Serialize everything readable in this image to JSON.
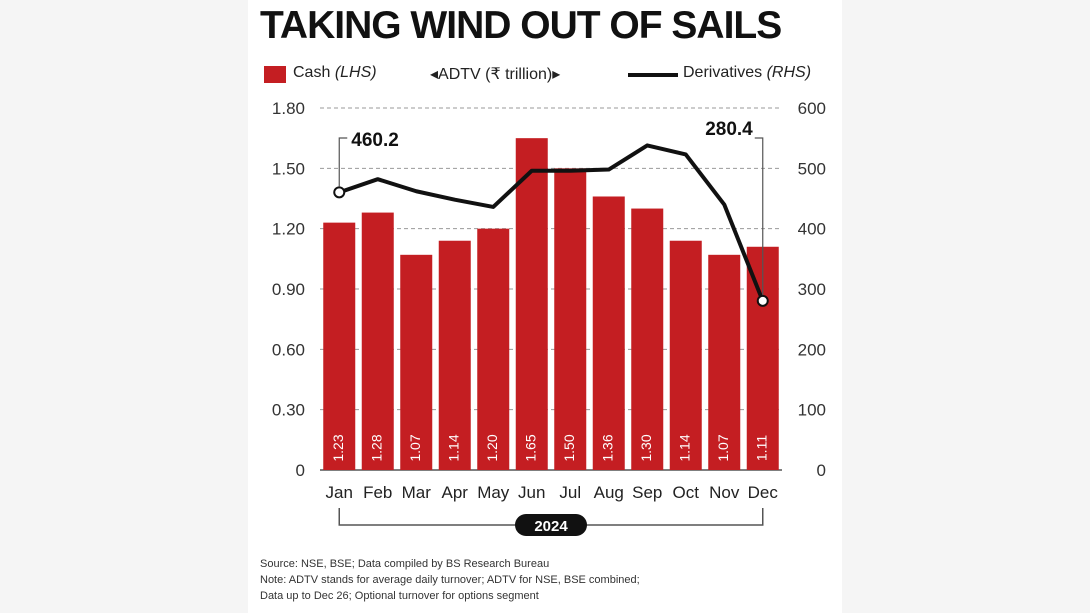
{
  "title": "TAKING WIND OUT OF SAILS",
  "legend": {
    "cash_label": "Cash",
    "cash_side": "(LHS)",
    "adtv_label": "◂ADTV (₹ trillion)▸",
    "derivatives_label": "Derivatives",
    "derivatives_side": "(RHS)"
  },
  "notes": [
    "Source: NSE, BSE; Data compiled by BS Research Bureau",
    "Note: ADTV stands for average daily turnover; ADTV for NSE, BSE combined;",
    "Data up to Dec 26; Optional turnover for options segment"
  ],
  "colors": {
    "bar": "#c41e22",
    "line": "#111111"
  },
  "chart_data": {
    "type": "bar",
    "categories": [
      "Jan",
      "Feb",
      "Mar",
      "Apr",
      "May",
      "Jun",
      "Jul",
      "Aug",
      "Sep",
      "Oct",
      "Nov",
      "Dec"
    ],
    "year_label": "2024",
    "series": [
      {
        "name": "Cash",
        "type": "bar",
        "axis": "left",
        "values": [
          1.23,
          1.28,
          1.07,
          1.14,
          1.2,
          1.65,
          1.5,
          1.36,
          1.3,
          1.14,
          1.07,
          1.11
        ],
        "labels": [
          "1.23",
          "1.28",
          "1.07",
          "1.14",
          "1.20",
          "1.65",
          "1.50",
          "1.36",
          "1.30",
          "1.14",
          "1.07",
          "1.11"
        ]
      },
      {
        "name": "Derivatives",
        "type": "line",
        "axis": "right",
        "values": [
          460.2,
          482,
          462,
          448,
          436,
          496,
          496,
          498,
          538,
          523,
          440,
          280.4
        ]
      }
    ],
    "annotations": [
      {
        "label": "460.2",
        "category": "Jan"
      },
      {
        "label": "280.4",
        "category": "Dec"
      }
    ],
    "y_left": {
      "lim": [
        0,
        1.8
      ],
      "ticks": [
        "0",
        "0.30",
        "0.60",
        "0.90",
        "1.20",
        "1.50",
        "1.80"
      ]
    },
    "y_right": {
      "lim": [
        0,
        600
      ],
      "ticks": [
        "0",
        "100",
        "200",
        "300",
        "400",
        "500",
        "600"
      ]
    },
    "grid": "horizontal dashed",
    "legend_position": "top"
  }
}
